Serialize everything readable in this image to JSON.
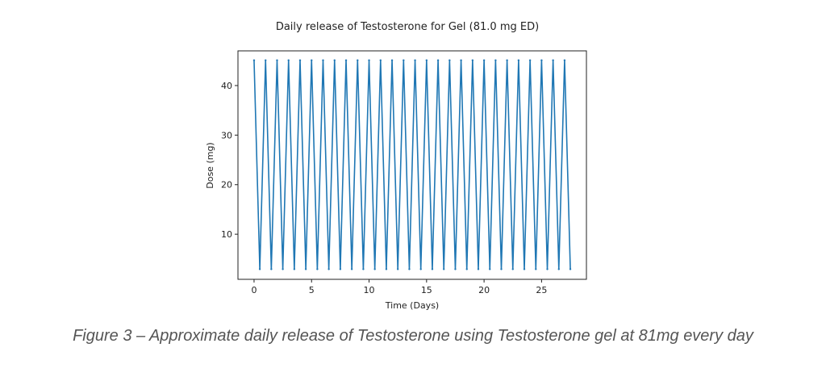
{
  "chart_data": {
    "type": "line",
    "title": "Daily release of Testosterone for Gel (81.0 mg ED)",
    "xlabel": "Time (Days)",
    "ylabel": "Dose (mg)",
    "xlim": [
      -1.4,
      28.9
    ],
    "ylim": [
      0.9,
      47.0
    ],
    "xticks": [
      0,
      5,
      10,
      15,
      20,
      25
    ],
    "yticks": [
      10,
      20,
      30,
      40
    ],
    "grid": false,
    "legend": "none",
    "series_color": "#1f77b4",
    "peak_dose": 45.1,
    "trough_dose": 2.95,
    "peak_days": [
      0,
      1,
      2,
      3,
      4,
      5,
      6,
      7,
      8,
      9,
      10,
      11,
      12,
      13,
      14,
      15,
      16,
      17,
      18,
      19,
      20,
      21,
      22,
      23,
      24,
      25,
      26,
      27
    ],
    "trough_days": [
      0.5,
      1.5,
      2.5,
      3.5,
      4.5,
      5.5,
      6.5,
      7.5,
      8.5,
      9.5,
      10.5,
      11.5,
      12.5,
      13.5,
      14.5,
      15.5,
      16.5,
      17.5,
      18.5,
      19.5,
      20.5,
      21.5,
      22.5,
      23.5,
      24.5,
      25.5,
      26.5,
      27.5
    ]
  },
  "caption": "Figure 3 – Approximate daily release of Testosterone using Testosterone gel at 81mg every day"
}
